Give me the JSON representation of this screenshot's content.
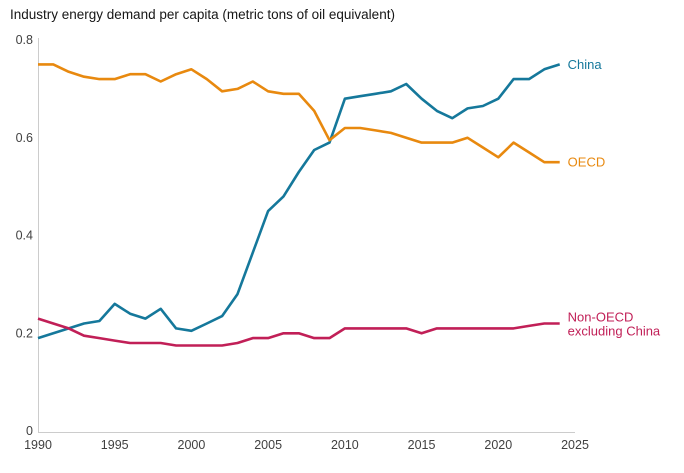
{
  "chart_data": {
    "type": "line",
    "title": "Industry energy demand per capita (metric tons of oil equivalent)",
    "xlabel": "",
    "ylabel": "",
    "xlim": [
      1990,
      2025
    ],
    "ylim": [
      0,
      0.8
    ],
    "grid": false,
    "legend_position": "line-end-labels",
    "axis_color": "#cccccc",
    "tick_label_color": "#414141",
    "title_color": "#161616",
    "background_color": "#ffffff",
    "x_ticks": [
      {
        "value": 1990,
        "label": "1990"
      },
      {
        "value": 1995,
        "label": "1995"
      },
      {
        "value": 2000,
        "label": "2000"
      },
      {
        "value": 2005,
        "label": "2005"
      },
      {
        "value": 2010,
        "label": "2010"
      },
      {
        "value": 2015,
        "label": "2015"
      },
      {
        "value": 2020,
        "label": "2020"
      },
      {
        "value": 2025,
        "label": "2025"
      }
    ],
    "y_ticks": [
      {
        "value": 0,
        "label": "0"
      },
      {
        "value": 0.2,
        "label": "0.2"
      },
      {
        "value": 0.4,
        "label": "0.4"
      },
      {
        "value": 0.6,
        "label": "0.6"
      },
      {
        "value": 0.8,
        "label": "0.8"
      }
    ],
    "x": [
      1990,
      1991,
      1992,
      1993,
      1994,
      1995,
      1996,
      1997,
      1998,
      1999,
      2000,
      2001,
      2002,
      2003,
      2004,
      2005,
      2006,
      2007,
      2008,
      2009,
      2010,
      2011,
      2012,
      2013,
      2014,
      2015,
      2016,
      2017,
      2018,
      2019,
      2020,
      2021,
      2022,
      2023,
      2024
    ],
    "series": [
      {
        "id": "china",
        "name": "China",
        "label_lines": [
          "China"
        ],
        "color": "#15789b",
        "values": [
          0.19,
          0.2,
          0.21,
          0.22,
          0.225,
          0.26,
          0.24,
          0.23,
          0.25,
          0.21,
          0.205,
          0.22,
          0.235,
          0.28,
          0.365,
          0.45,
          0.48,
          0.53,
          0.575,
          0.59,
          0.68,
          0.685,
          0.69,
          0.695,
          0.71,
          0.68,
          0.655,
          0.64,
          0.66,
          0.665,
          0.68,
          0.72,
          0.72,
          0.74,
          0.75
        ]
      },
      {
        "id": "oecd",
        "name": "OECD",
        "label_lines": [
          "OECD"
        ],
        "color": "#e8890f",
        "values": [
          0.75,
          0.75,
          0.735,
          0.725,
          0.72,
          0.72,
          0.73,
          0.73,
          0.715,
          0.73,
          0.74,
          0.72,
          0.695,
          0.7,
          0.715,
          0.695,
          0.69,
          0.69,
          0.655,
          0.595,
          0.62,
          0.62,
          0.615,
          0.61,
          0.6,
          0.59,
          0.59,
          0.59,
          0.6,
          0.58,
          0.56,
          0.59,
          0.57,
          0.55,
          0.55
        ]
      },
      {
        "id": "non-oecd-excluding-china",
        "name": "Non-OECD excluding China",
        "label_lines": [
          "Non-OECD",
          "excluding China"
        ],
        "color": "#c11f57",
        "values": [
          0.23,
          0.22,
          0.21,
          0.195,
          0.19,
          0.185,
          0.18,
          0.18,
          0.18,
          0.175,
          0.175,
          0.175,
          0.175,
          0.18,
          0.19,
          0.19,
          0.2,
          0.2,
          0.19,
          0.19,
          0.21,
          0.21,
          0.21,
          0.21,
          0.21,
          0.2,
          0.21,
          0.21,
          0.21,
          0.21,
          0.21,
          0.21,
          0.215,
          0.22,
          0.22
        ]
      }
    ]
  }
}
